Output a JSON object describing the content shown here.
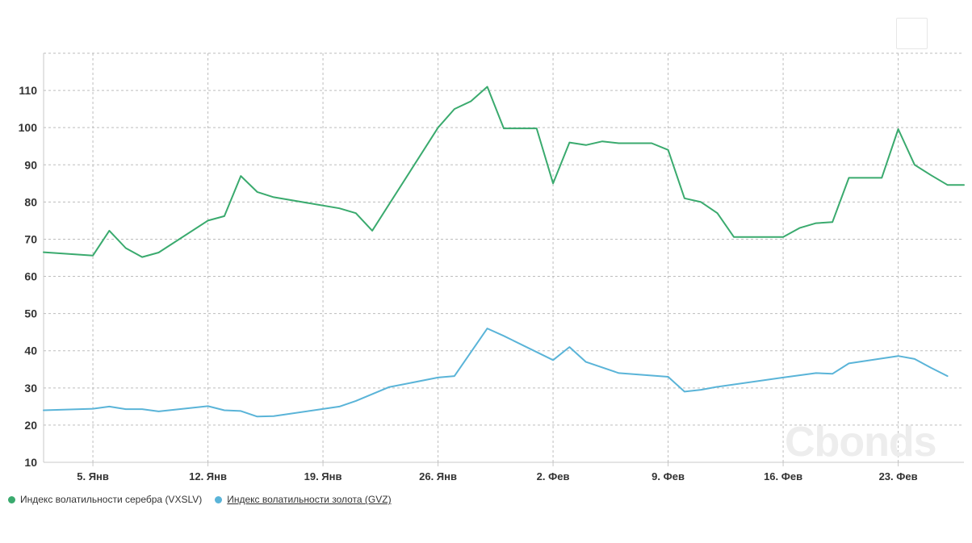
{
  "menu_button": {
    "icon": "menu-icon"
  },
  "watermark": "Cbonds",
  "chart_data": {
    "type": "line",
    "y_ticks": [
      10,
      20,
      30,
      40,
      50,
      60,
      70,
      80,
      90,
      100,
      110
    ],
    "ylim": [
      10,
      120
    ],
    "x_ticks": [
      {
        "label": "5. Янв",
        "date": "2021-01-05"
      },
      {
        "label": "12. Янв",
        "date": "2021-01-12"
      },
      {
        "label": "19. Янв",
        "date": "2021-01-19"
      },
      {
        "label": "26. Янв",
        "date": "2021-01-26"
      },
      {
        "label": "2. Фев",
        "date": "2021-02-02"
      },
      {
        "label": "9. Фев",
        "date": "2021-02-09"
      },
      {
        "label": "16. Фев",
        "date": "2021-02-16"
      },
      {
        "label": "23. Фев",
        "date": "2021-02-23"
      }
    ],
    "xlim": [
      "2021-01-02",
      "2021-02-26"
    ],
    "grid": true,
    "legend_position": "bottom-left",
    "series": [
      {
        "name": "Индекс волатильности серебра (VXSLV)",
        "color": "#3aaa6e",
        "points": [
          [
            "2021-01-02",
            66.5
          ],
          [
            "2021-01-05",
            65.6
          ],
          [
            "2021-01-06",
            72.3
          ],
          [
            "2021-01-07",
            67.6
          ],
          [
            "2021-01-08",
            65.2
          ],
          [
            "2021-01-09",
            66.4
          ],
          [
            "2021-01-12",
            75.0
          ],
          [
            "2021-01-13",
            76.2
          ],
          [
            "2021-01-14",
            87.0
          ],
          [
            "2021-01-15",
            82.7
          ],
          [
            "2021-01-16",
            81.3
          ],
          [
            "2021-01-20",
            78.3
          ],
          [
            "2021-01-21",
            77.0
          ],
          [
            "2021-01-22",
            72.3
          ],
          [
            "2021-01-26",
            100.0
          ],
          [
            "2021-01-27",
            105.0
          ],
          [
            "2021-01-28",
            107.1
          ],
          [
            "2021-01-29",
            111.0
          ],
          [
            "2021-01-30",
            99.8
          ],
          [
            "2021-02-01",
            99.8
          ],
          [
            "2021-02-02",
            85.0
          ],
          [
            "2021-02-03",
            96.0
          ],
          [
            "2021-02-04",
            95.3
          ],
          [
            "2021-02-05",
            96.3
          ],
          [
            "2021-02-06",
            95.8
          ],
          [
            "2021-02-08",
            95.8
          ],
          [
            "2021-02-09",
            94.0
          ],
          [
            "2021-02-10",
            81.0
          ],
          [
            "2021-02-11",
            80.0
          ],
          [
            "2021-02-12",
            77.0
          ],
          [
            "2021-02-13",
            70.6
          ],
          [
            "2021-02-16",
            70.6
          ],
          [
            "2021-02-17",
            73.0
          ],
          [
            "2021-02-18",
            74.3
          ],
          [
            "2021-02-19",
            74.6
          ],
          [
            "2021-02-20",
            86.5
          ],
          [
            "2021-02-22",
            86.5
          ],
          [
            "2021-02-23",
            99.6
          ],
          [
            "2021-02-24",
            90.0
          ],
          [
            "2021-02-25",
            87.2
          ],
          [
            "2021-02-26",
            84.6
          ],
          [
            "2021-02-27",
            84.6
          ]
        ]
      },
      {
        "name": "Индекс волатильности золота (GVZ)",
        "color": "#5ab4d8",
        "points": [
          [
            "2021-01-02",
            24.0
          ],
          [
            "2021-01-05",
            24.4
          ],
          [
            "2021-01-06",
            25.0
          ],
          [
            "2021-01-07",
            24.3
          ],
          [
            "2021-01-08",
            24.3
          ],
          [
            "2021-01-09",
            23.7
          ],
          [
            "2021-01-12",
            25.1
          ],
          [
            "2021-01-13",
            24.0
          ],
          [
            "2021-01-14",
            23.8
          ],
          [
            "2021-01-15",
            22.3
          ],
          [
            "2021-01-16",
            22.4
          ],
          [
            "2021-01-20",
            25.0
          ],
          [
            "2021-01-21",
            26.5
          ],
          [
            "2021-01-23",
            30.2
          ],
          [
            "2021-01-26",
            32.8
          ],
          [
            "2021-01-27",
            33.2
          ],
          [
            "2021-01-29",
            46.0
          ],
          [
            "2021-01-30",
            44.0
          ],
          [
            "2021-02-02",
            37.5
          ],
          [
            "2021-02-03",
            41.0
          ],
          [
            "2021-02-04",
            37.0
          ],
          [
            "2021-02-06",
            34.0
          ],
          [
            "2021-02-09",
            33.0
          ],
          [
            "2021-02-10",
            29.0
          ],
          [
            "2021-02-11",
            29.5
          ],
          [
            "2021-02-12",
            30.3
          ],
          [
            "2021-02-16",
            32.8
          ],
          [
            "2021-02-18",
            34.0
          ],
          [
            "2021-02-19",
            33.8
          ],
          [
            "2021-02-20",
            36.6
          ],
          [
            "2021-02-23",
            38.6
          ],
          [
            "2021-02-24",
            37.8
          ],
          [
            "2021-02-25",
            35.4
          ],
          [
            "2021-02-26",
            33.2
          ]
        ]
      }
    ]
  }
}
